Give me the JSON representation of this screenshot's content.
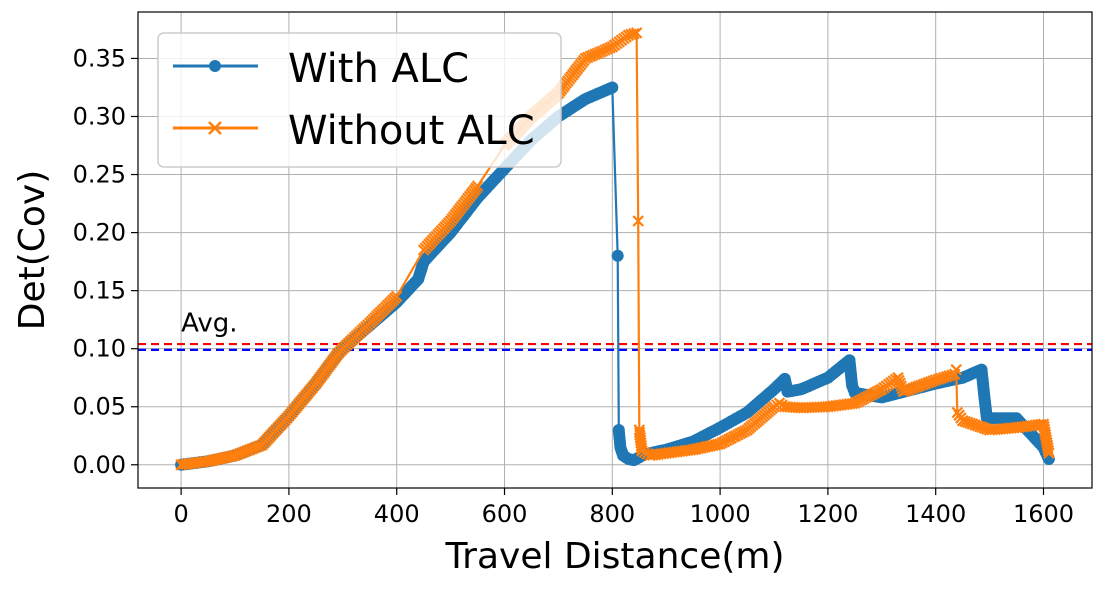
{
  "chart_data": {
    "type": "line",
    "xlabel": "Travel Distance(m)",
    "ylabel": "Det(Cov)",
    "xlim": [
      -80,
      1690
    ],
    "ylim": [
      -0.02,
      0.39
    ],
    "xticks": [
      0,
      200,
      400,
      600,
      800,
      1000,
      1200,
      1400,
      1600
    ],
    "yticks": [
      0.0,
      0.05,
      0.1,
      0.15,
      0.2,
      0.25,
      0.3,
      0.35
    ],
    "x_tick_labels": [
      "0",
      "200",
      "400",
      "600",
      "800",
      "1000",
      "1200",
      "1400",
      "1600"
    ],
    "y_tick_labels": [
      "0.00",
      "0.05",
      "0.10",
      "0.15",
      "0.20",
      "0.25",
      "0.30",
      "0.35"
    ],
    "grid": true,
    "legend_position": "top-left",
    "series": [
      {
        "name": "With ALC",
        "color": "#1f77b4",
        "marker": "circle",
        "x": [
          0,
          50,
          100,
          150,
          200,
          250,
          290,
          300,
          350,
          400,
          440,
          450,
          500,
          550,
          600,
          650,
          700,
          750,
          800,
          810,
          812,
          815,
          820,
          830,
          840,
          860,
          900,
          950,
          1000,
          1050,
          1100,
          1120,
          1125,
          1150,
          1200,
          1240,
          1245,
          1250,
          1300,
          1350,
          1400,
          1450,
          1485,
          1490,
          1495,
          1550,
          1600,
          1610
        ],
        "y": [
          0.0,
          0.003,
          0.008,
          0.017,
          0.042,
          0.07,
          0.095,
          0.1,
          0.12,
          0.14,
          0.16,
          0.175,
          0.2,
          0.23,
          0.255,
          0.28,
          0.3,
          0.315,
          0.325,
          0.18,
          0.03,
          0.015,
          0.008,
          0.005,
          0.004,
          0.009,
          0.013,
          0.02,
          0.032,
          0.045,
          0.065,
          0.074,
          0.063,
          0.065,
          0.075,
          0.09,
          0.068,
          0.062,
          0.058,
          0.064,
          0.07,
          0.075,
          0.082,
          0.06,
          0.04,
          0.04,
          0.015,
          0.005
        ]
      },
      {
        "name": "Without ALC",
        "color": "#ff7f0e",
        "marker": "x",
        "x": [
          0,
          50,
          100,
          150,
          200,
          250,
          290,
          300,
          350,
          400,
          450,
          500,
          550,
          600,
          650,
          700,
          750,
          800,
          830,
          845,
          848,
          850,
          855,
          870,
          900,
          950,
          1000,
          1050,
          1100,
          1110,
          1120,
          1150,
          1200,
          1250,
          1300,
          1330,
          1340,
          1400,
          1435,
          1438,
          1440,
          1450,
          1500,
          1550,
          1600,
          1610
        ],
        "y": [
          0.0,
          0.003,
          0.008,
          0.017,
          0.042,
          0.07,
          0.095,
          0.1,
          0.122,
          0.145,
          0.185,
          0.21,
          0.24,
          0.275,
          0.3,
          0.32,
          0.35,
          0.36,
          0.37,
          0.372,
          0.21,
          0.03,
          0.012,
          0.008,
          0.01,
          0.013,
          0.018,
          0.03,
          0.05,
          0.053,
          0.05,
          0.049,
          0.05,
          0.053,
          0.065,
          0.075,
          0.063,
          0.073,
          0.078,
          0.082,
          0.045,
          0.038,
          0.03,
          0.032,
          0.035,
          0.01
        ]
      }
    ],
    "reference_lines": [
      {
        "y": 0.104,
        "color": "#ff0000",
        "style": "dashed"
      },
      {
        "y": 0.099,
        "color": "#0000ff",
        "style": "dashed"
      }
    ],
    "annotations": [
      {
        "text": "Avg.",
        "x": 0,
        "y": 0.115
      }
    ]
  }
}
